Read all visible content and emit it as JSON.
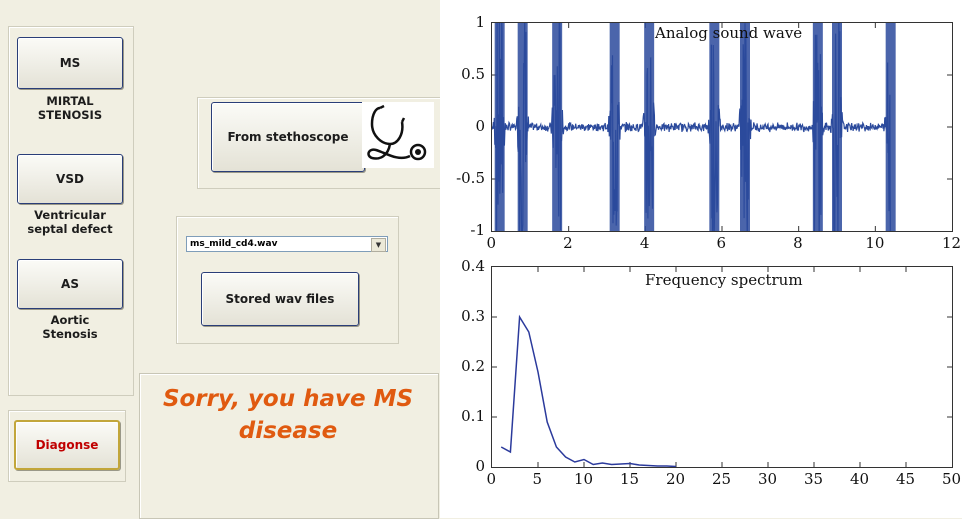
{
  "sidebar": {
    "items": [
      {
        "button_label": "MS",
        "caption_lines": [
          "MIRTAL",
          "STENOSIS"
        ]
      },
      {
        "button_label": "VSD",
        "caption_lines": [
          "Ventricular",
          "septal defect"
        ]
      },
      {
        "button_label": "AS",
        "caption_lines": [
          "Aortic",
          "Stenosis"
        ]
      }
    ],
    "diagnose_label": "Diagonse"
  },
  "stethoscope": {
    "button_label": "From stethoscope",
    "icon": "stethoscope-icon"
  },
  "stored": {
    "selected_file": "ms_mild_cd4.wav",
    "button_label": "Stored wav files"
  },
  "result": {
    "line1": "Sorry, you have MS",
    "line2": "disease",
    "color": "#e05a10"
  },
  "chart_data": [
    {
      "type": "line",
      "title": "Analog sound wave",
      "xlim": [
        0,
        12
      ],
      "ylim": [
        -1,
        1
      ],
      "x_ticks": [
        "0",
        "2",
        "4",
        "6",
        "8",
        "10",
        "12"
      ],
      "y_ticks": [
        "1",
        "0.5",
        "0",
        "-0.5",
        "-1"
      ],
      "series_color": "#2b4a9c",
      "bursts": [
        {
          "x": 0.2,
          "amp": 1.0
        },
        {
          "x": 0.8,
          "amp": 1.0
        },
        {
          "x": 1.7,
          "amp": 1.0
        },
        {
          "x": 3.2,
          "amp": 1.0
        },
        {
          "x": 4.1,
          "amp": 1.0
        },
        {
          "x": 5.8,
          "amp": 1.0
        },
        {
          "x": 6.6,
          "amp": 1.0
        },
        {
          "x": 8.5,
          "amp": 1.0
        },
        {
          "x": 9.0,
          "amp": 1.0
        },
        {
          "x": 10.4,
          "amp": 1.0
        }
      ],
      "signal_end_x": 10.4
    },
    {
      "type": "line",
      "title": "Frequency spectrum",
      "xlim": [
        0,
        50
      ],
      "ylim": [
        0,
        0.4
      ],
      "x_ticks": [
        "0",
        "5",
        "10",
        "15",
        "20",
        "25",
        "30",
        "35",
        "40",
        "45",
        "50"
      ],
      "y_ticks": [
        "0.4",
        "0.3",
        "0.2",
        "0.1",
        "0"
      ],
      "series_color": "#2b3a9c",
      "x": [
        1,
        2,
        3,
        4,
        5,
        6,
        7,
        8,
        9,
        10,
        11,
        12,
        13,
        14,
        15,
        16,
        17,
        18,
        19,
        20
      ],
      "y": [
        0.04,
        0.03,
        0.3,
        0.27,
        0.19,
        0.09,
        0.04,
        0.02,
        0.01,
        0.015,
        0.005,
        0.008,
        0.005,
        0.006,
        0.007,
        0.004,
        0.003,
        0.002,
        0.002,
        0.001
      ]
    }
  ]
}
